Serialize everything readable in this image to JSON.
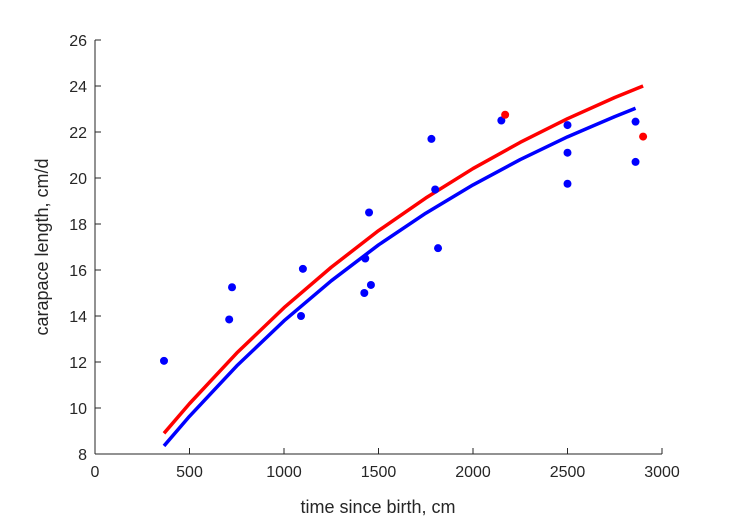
{
  "chart_data": {
    "type": "scatter",
    "title": "",
    "xlabel": "time since birth, cm",
    "ylabel": "carapace length, cm/d",
    "xlim": [
      0,
      3000
    ],
    "ylim": [
      8,
      26
    ],
    "xticks": [
      "0",
      "500",
      "1000",
      "1500",
      "2000",
      "2500",
      "3000"
    ],
    "yticks": [
      "8",
      "10",
      "12",
      "14",
      "16",
      "18",
      "20",
      "22",
      "24",
      "26"
    ],
    "grid": false,
    "legend": "none",
    "series": [
      {
        "kind": "points",
        "color": "#0000ff",
        "points": [
          [
            365,
            12.05
          ],
          [
            710,
            13.85
          ],
          [
            725,
            15.25
          ],
          [
            1090,
            14.0
          ],
          [
            1100,
            16.05
          ],
          [
            1425,
            15.0
          ],
          [
            1430,
            16.5
          ],
          [
            1450,
            18.5
          ],
          [
            1460,
            15.35
          ],
          [
            1780,
            21.7
          ],
          [
            1800,
            19.5
          ],
          [
            1815,
            16.95
          ],
          [
            2150,
            22.5
          ],
          [
            2500,
            22.3
          ],
          [
            2500,
            21.1
          ],
          [
            2500,
            19.75
          ],
          [
            2860,
            22.45
          ],
          [
            2860,
            20.7
          ]
        ]
      },
      {
        "kind": "points",
        "color": "#ff0000",
        "points": [
          [
            2170,
            22.75
          ],
          [
            2900,
            21.8
          ]
        ]
      },
      {
        "kind": "line",
        "color": "#ff0000",
        "x": [
          365,
          500,
          750,
          1000,
          1250,
          1500,
          1750,
          2000,
          2250,
          2500,
          2750,
          2900
        ],
        "y": [
          8.9,
          10.19,
          12.39,
          14.36,
          16.12,
          17.71,
          19.13,
          20.41,
          21.55,
          22.58,
          23.5,
          24.0
        ]
      },
      {
        "kind": "line",
        "color": "#0000ff",
        "x": [
          365,
          500,
          750,
          1000,
          1250,
          1500,
          1750,
          2000,
          2250,
          2500,
          2750,
          2860
        ],
        "y": [
          8.35,
          9.64,
          11.83,
          13.79,
          15.53,
          17.09,
          18.47,
          19.7,
          20.8,
          21.79,
          22.67,
          23.03
        ]
      }
    ]
  }
}
